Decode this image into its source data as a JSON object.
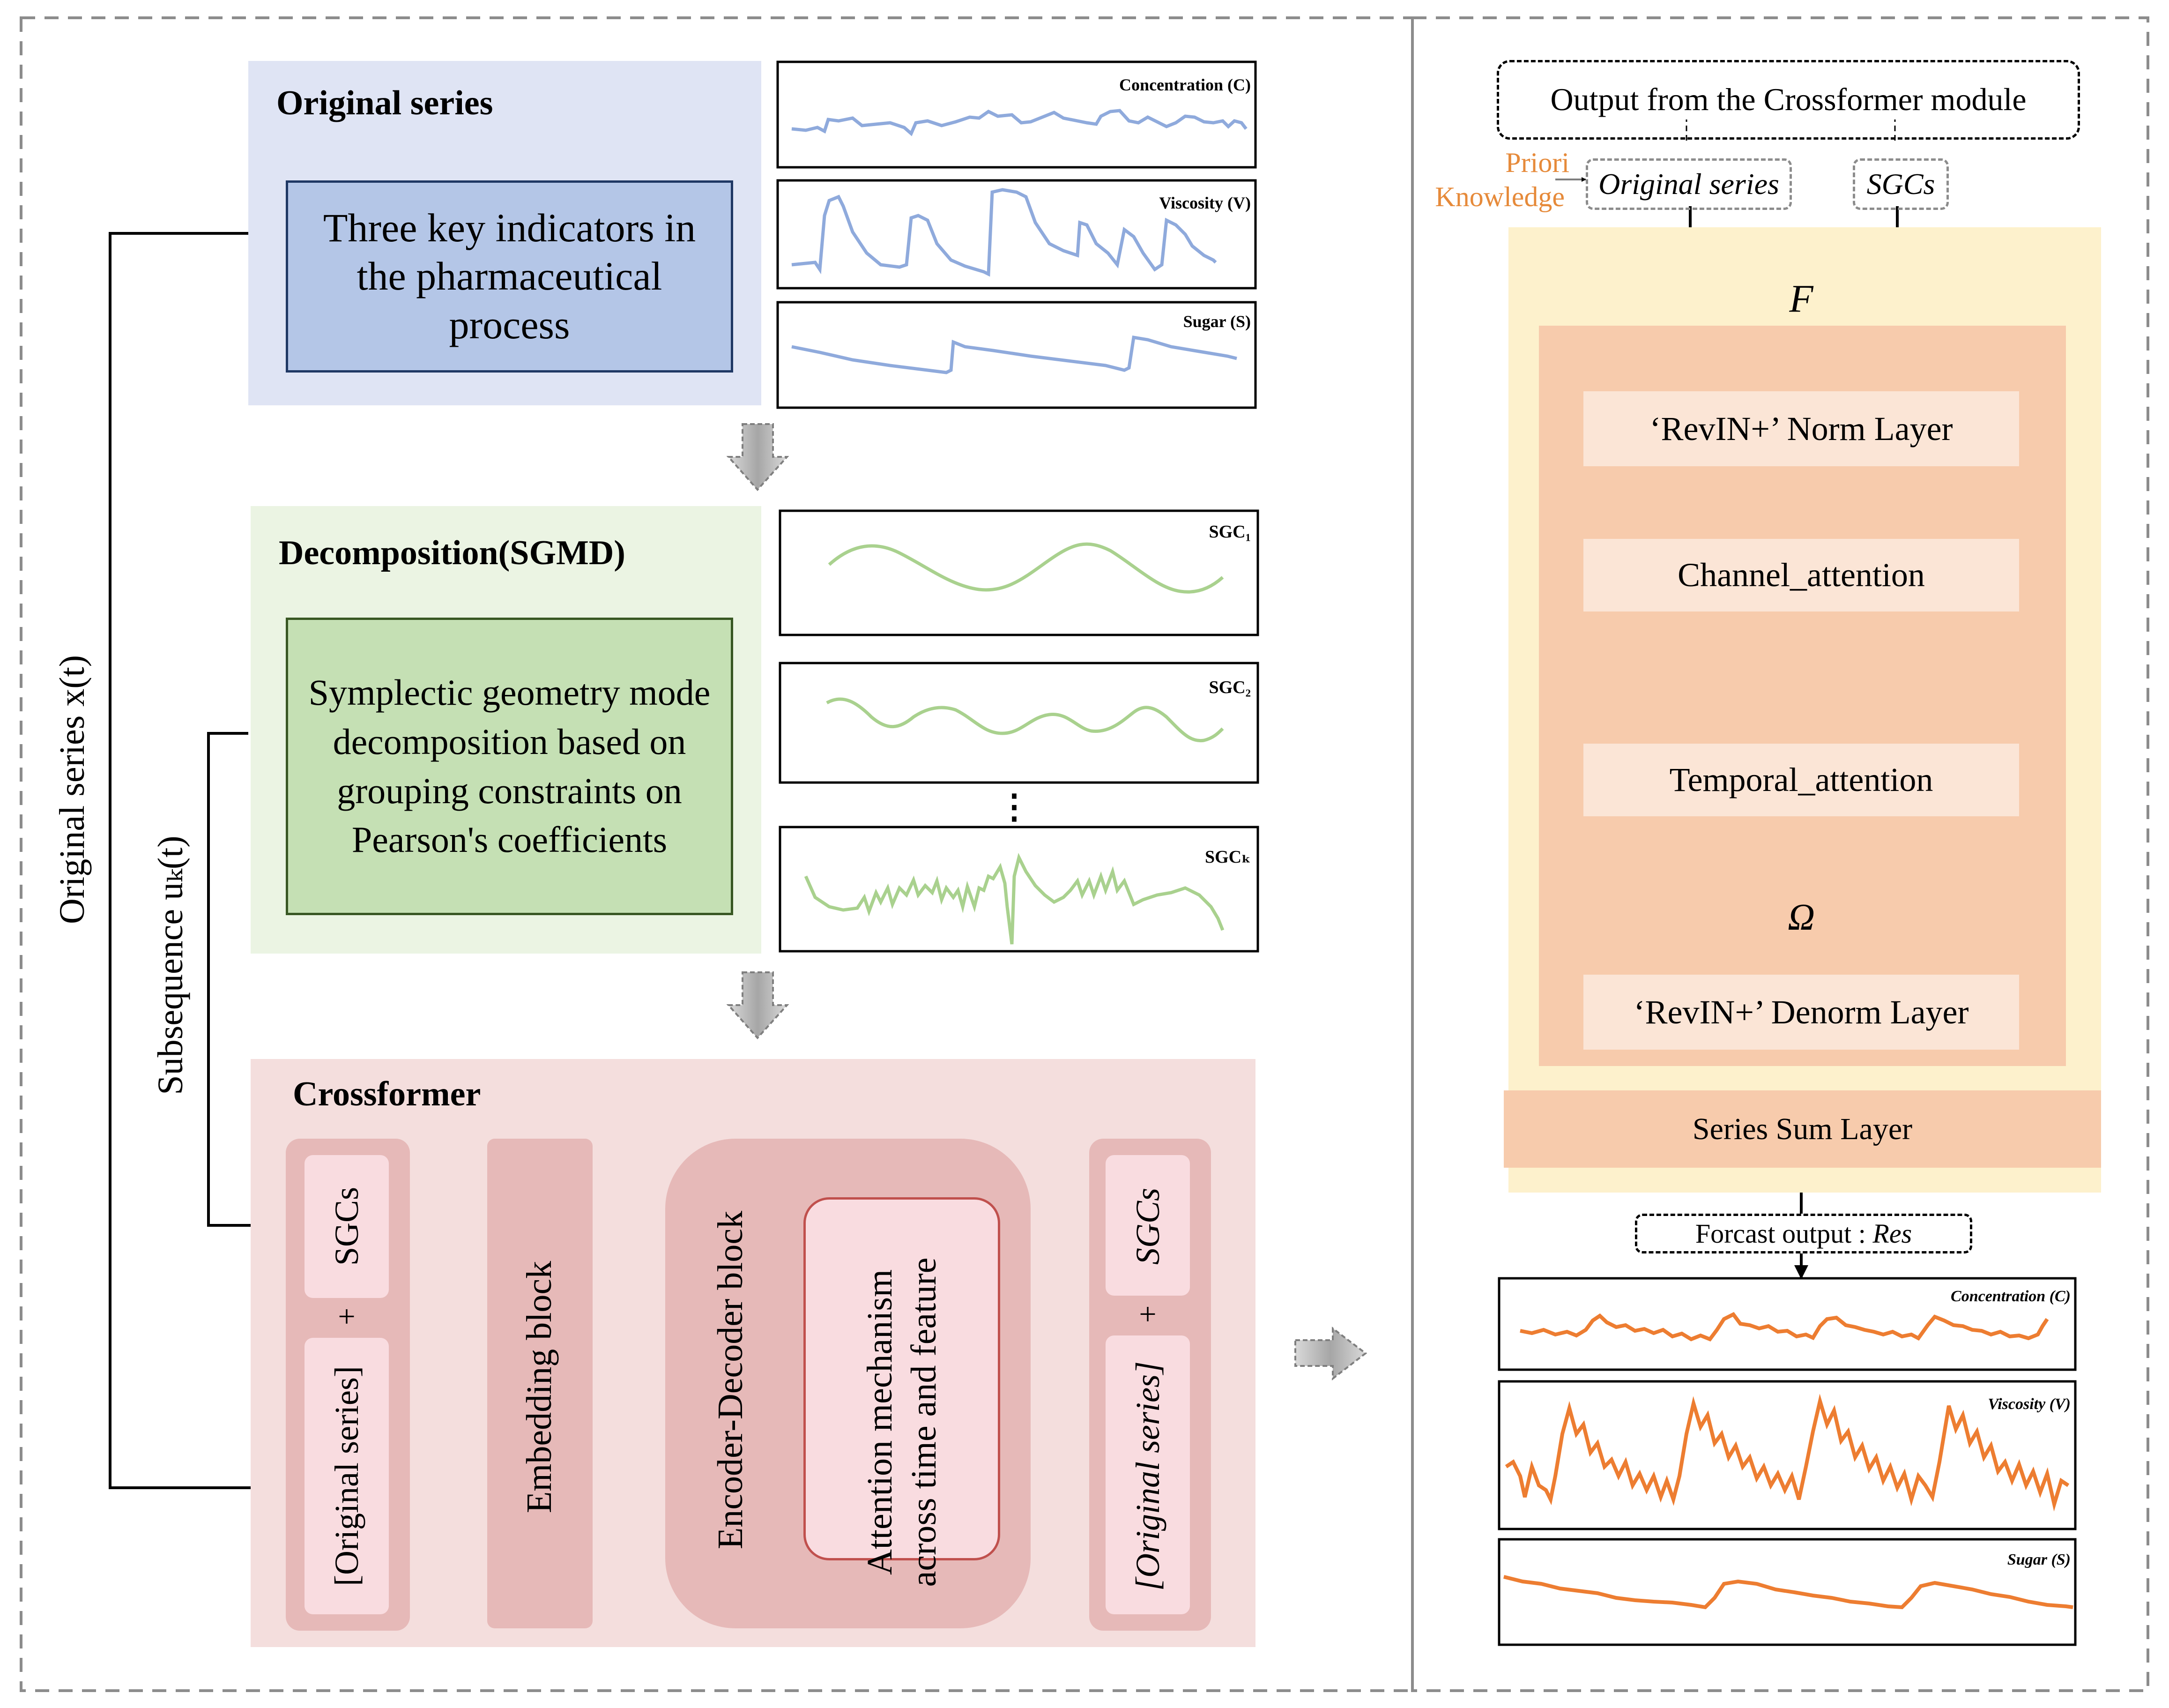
{
  "left": {
    "side_label_x": "Original series x(t)",
    "side_label_u": "Subsequence uₖ(t)",
    "original": {
      "title": "Original series",
      "box_text": "Three key indicators in the pharmaceutical process",
      "plots": [
        "Concentration (C)",
        "Viscosity (V)",
        "Sugar (S)"
      ]
    },
    "decomposition": {
      "title": "Decomposition(SGMD)",
      "box_text": "Symplectic geometry mode decomposition based on grouping constraints on Pearson's coefficients",
      "plots": [
        "SGC₁",
        "SGC₂",
        "SGCₖ"
      ],
      "ellipsis": "⋮"
    },
    "crossformer": {
      "title": "Crossformer",
      "input_sgcs": "SGCs",
      "input_plus": "+",
      "input_original": "[Original series]",
      "embedding": "Embedding block",
      "encoder_decoder": "Encoder-Decoder block",
      "attention": "Attention mechanism across time and feature",
      "output_sgcs": "SGCs",
      "output_plus": "+",
      "output_original": "[Original series]"
    }
  },
  "right": {
    "output_from": "Output from the Crossformer module",
    "priori_line1": "Priori",
    "priori_line2": "Knowledge",
    "original_series": "Original series",
    "sgcs": "SGCs",
    "f_symbol": "F",
    "norm_layer": "‘RevIN+’ Norm Layer",
    "channel_attention": "Channel_attention",
    "temporal_attention": "Temporal_attention",
    "omega": "Ω",
    "multiply": "⊗",
    "denorm_layer": "‘RevIN+’ Denorm Layer",
    "series_sum": "Series Sum Layer",
    "forecast_prefix": "Forcast output : ",
    "forecast_res": "Res",
    "plots": [
      "Concentration (C)",
      "Viscosity (V)",
      "Sugar (S)"
    ]
  },
  "colors": {
    "blue_panel": "#dfe4f4",
    "blue_box": "#b4c6e7",
    "blue_line": "#8faadc",
    "green_panel": "#ebf4e3",
    "green_box": "#c5e0b4",
    "green_line": "#a9d18e",
    "pink_panel": "#f4dedd",
    "pink_block": "#e6b9b8",
    "pink_light": "#f9dce0",
    "red_border": "#c0504d",
    "yellow_panel": "#fdf1cc",
    "orange_panel": "#f7cbac",
    "orange_light": "#fbe5d6",
    "orange_text": "#e68a3a",
    "orange_line": "#ed7d31",
    "dash_grey": "#8c8c8c"
  }
}
